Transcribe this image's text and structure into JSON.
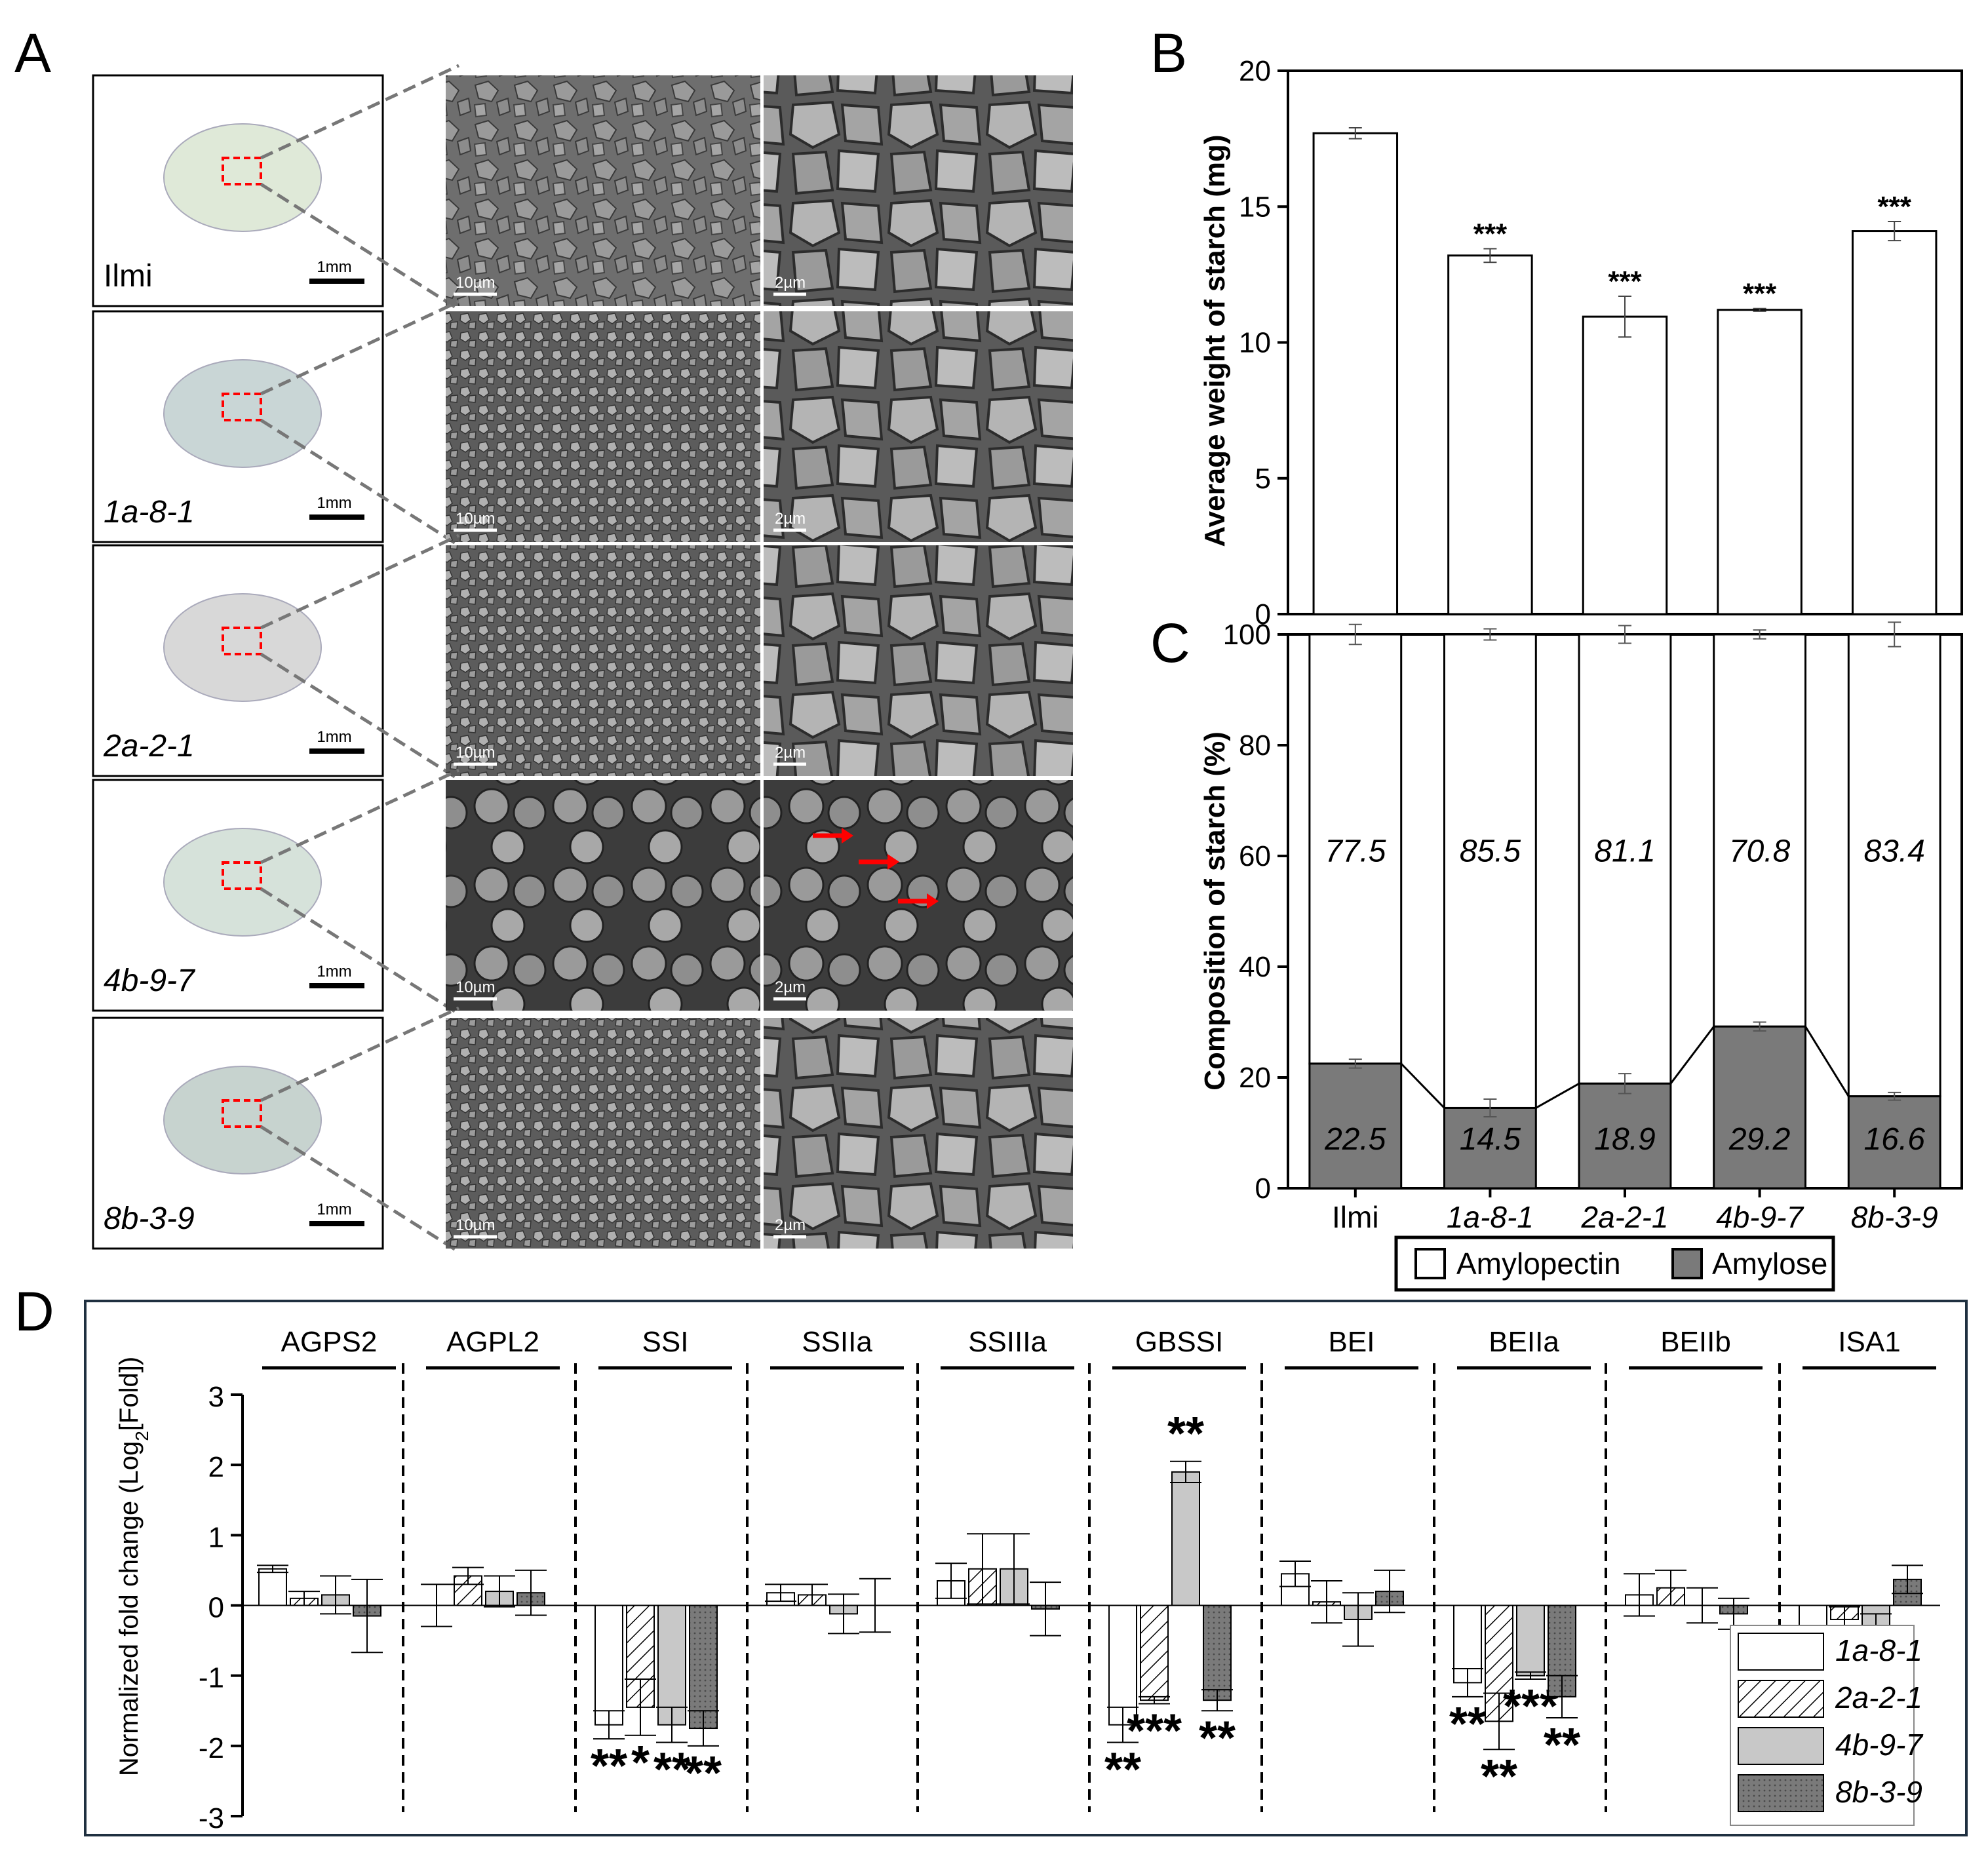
{
  "panel_letters": {
    "a": "A",
    "b": "B",
    "c": "C",
    "d": "D"
  },
  "panel_a": {
    "samples": [
      {
        "label": "Ilmi",
        "italic": false,
        "photo_scale": "1mm",
        "sem_low_scale": "10µm",
        "sem_high_scale": "2µm"
      },
      {
        "label": "1a-8-1",
        "italic": true,
        "photo_scale": "1mm",
        "sem_low_scale": "10µm",
        "sem_high_scale": "2µm"
      },
      {
        "label": "2a-2-1",
        "italic": true,
        "photo_scale": "1mm",
        "sem_low_scale": "10µm",
        "sem_high_scale": "2µm"
      },
      {
        "label": "4b-9-7",
        "italic": true,
        "photo_scale": "1mm",
        "sem_low_scale": "10µm",
        "sem_high_scale": "2µm"
      },
      {
        "label": "8b-3-9",
        "italic": true,
        "photo_scale": "1mm",
        "sem_low_scale": "10µm",
        "sem_high_scale": "2µm"
      }
    ],
    "colors": {
      "seed_highlight": "#ff0000",
      "arrow": "#ff0000",
      "sem_gray": "#7a7a7a"
    }
  },
  "chart_data": [
    {
      "panel": "B",
      "type": "bar",
      "categories": [
        "Ilmi",
        "1a-8-1",
        "2a-2-1",
        "4b-9-7",
        "8b-3-9"
      ],
      "values": [
        17.7,
        13.2,
        10.95,
        11.2,
        14.1
      ],
      "errors": [
        0.2,
        0.25,
        0.75,
        0.05,
        0.35
      ],
      "significance": [
        "",
        "***",
        "***",
        "***",
        "***"
      ],
      "ylabel": "Average weight of starch (mg)",
      "ylim": [
        0,
        20
      ],
      "yticks": [
        0,
        5,
        10,
        15,
        20
      ],
      "bar_color": "#ffffff"
    },
    {
      "panel": "C",
      "type": "bar",
      "stacked": true,
      "categories": [
        "Ilmi",
        "1a-8-1",
        "2a-2-1",
        "4b-9-7",
        "8b-3-9"
      ],
      "series": [
        {
          "name": "Amylose",
          "values": [
            22.5,
            14.5,
            18.9,
            29.2,
            16.6
          ],
          "errors": [
            0.8,
            1.6,
            1.8,
            0.8,
            0.7
          ],
          "color": "#7a7a7a"
        },
        {
          "name": "Amylopectin",
          "values": [
            77.5,
            85.5,
            81.1,
            70.8,
            83.4
          ],
          "errors": [
            1.8,
            1.0,
            1.6,
            0.8,
            2.2
          ],
          "color": "#ffffff"
        }
      ],
      "ylabel": "Composition of starch (%)",
      "ylim": [
        0,
        100
      ],
      "yticks": [
        0,
        20,
        40,
        60,
        80,
        100
      ],
      "legend_placement": "bottom"
    },
    {
      "panel": "D",
      "type": "bar",
      "categories": [
        "AGPS2",
        "AGPL2",
        "SSI",
        "SSIIa",
        "SSIIIa",
        "GBSSI",
        "BEI",
        "BEIIa",
        "BEIIb",
        "ISA1"
      ],
      "series": [
        {
          "name": "1a-8-1",
          "values": [
            0.52,
            0.0,
            -1.7,
            0.18,
            0.35,
            -1.7,
            0.45,
            -1.1,
            0.15,
            -0.45
          ],
          "errors": [
            0.05,
            0.3,
            0.2,
            0.12,
            0.25,
            0.25,
            0.18,
            0.2,
            0.3,
            0.07
          ],
          "significance": [
            "",
            "",
            "**",
            "",
            "",
            "**",
            "",
            "**",
            "",
            ""
          ],
          "pattern": "empty"
        },
        {
          "name": "2a-2-1",
          "values": [
            0.1,
            0.42,
            -1.45,
            0.15,
            0.52,
            -1.35,
            0.05,
            -1.65,
            0.25,
            -0.2
          ],
          "errors": [
            0.1,
            0.12,
            0.4,
            0.15,
            0.5,
            0.05,
            0.3,
            0.4,
            0.25,
            0.18
          ],
          "significance": [
            "",
            "",
            "*",
            "",
            "",
            "***",
            "",
            "**",
            "",
            ""
          ],
          "pattern": "hatch"
        },
        {
          "name": "4b-9-7",
          "values": [
            0.15,
            0.2,
            -1.7,
            -0.12,
            0.52,
            1.9,
            -0.2,
            -1.0,
            0.0,
            -0.32
          ],
          "errors": [
            0.27,
            0.22,
            0.25,
            0.28,
            0.5,
            0.15,
            0.38,
            0.05,
            0.25,
            0.2
          ],
          "significance": [
            "",
            "",
            "**",
            "",
            "",
            "**",
            "",
            "***",
            "",
            ""
          ],
          "pattern": "light"
        },
        {
          "name": "8b-3-9",
          "values": [
            -0.15,
            0.18,
            -1.75,
            0.0,
            -0.05,
            -1.35,
            0.2,
            -1.3,
            -0.12,
            0.37
          ],
          "errors": [
            0.52,
            0.32,
            0.25,
            0.38,
            0.38,
            0.15,
            0.3,
            0.3,
            0.22,
            0.2
          ],
          "significance": [
            "",
            "",
            "**",
            "",
            "",
            "**",
            "",
            "**",
            "",
            ""
          ],
          "pattern": "dark"
        }
      ],
      "ylabel": "Normalized fold change (Log",
      "ylabel_sub": "2",
      "ylabel_tail": "[Fold])",
      "ylim": [
        -3,
        3
      ],
      "yticks": [
        -3,
        -2,
        -1,
        0,
        1,
        2,
        3
      ],
      "legend_placement": "bottom-right",
      "colors": {
        "light": "#c8c8c8",
        "dark": "#7a7a7a",
        "frame": "#1f3040"
      }
    }
  ]
}
